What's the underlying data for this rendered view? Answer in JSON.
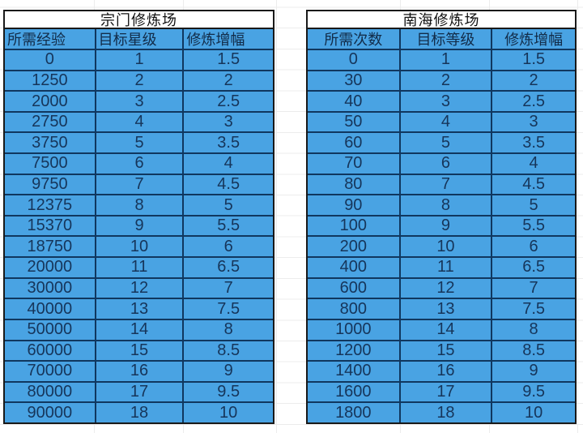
{
  "canvas": {
    "background": "#ffffff",
    "grid_line_color": "#ececec"
  },
  "colors": {
    "cell_fill": "#49A3E3",
    "cell_border": "#10375F",
    "outer_border": "#191919",
    "title_fill": "#FFFFFF",
    "title_text": "#111111",
    "header_text": "#122C49",
    "data_text": "#16355A"
  },
  "tables": [
    {
      "title": "宗门修炼场",
      "columns": [
        "所需经验",
        "目标星级",
        "修炼增幅"
      ],
      "rows": [
        [
          0,
          1,
          1.5
        ],
        [
          1250,
          2,
          2
        ],
        [
          2000,
          3,
          2.5
        ],
        [
          2750,
          4,
          3
        ],
        [
          3750,
          5,
          3.5
        ],
        [
          7500,
          6,
          4
        ],
        [
          9750,
          7,
          4.5
        ],
        [
          12375,
          8,
          5
        ],
        [
          15370,
          9,
          5.5
        ],
        [
          18750,
          10,
          6
        ],
        [
          20000,
          11,
          6.5
        ],
        [
          30000,
          12,
          7
        ],
        [
          40000,
          13,
          7.5
        ],
        [
          50000,
          14,
          8
        ],
        [
          60000,
          15,
          8.5
        ],
        [
          70000,
          16,
          9
        ],
        [
          80000,
          17,
          9.5
        ],
        [
          90000,
          18,
          10
        ]
      ]
    },
    {
      "title": "南海修炼场",
      "columns": [
        "所需次数",
        "目标等级",
        "修炼增幅"
      ],
      "rows": [
        [
          0,
          1,
          1.5
        ],
        [
          30,
          2,
          2
        ],
        [
          40,
          3,
          2.5
        ],
        [
          50,
          4,
          3
        ],
        [
          60,
          5,
          3.5
        ],
        [
          70,
          6,
          4
        ],
        [
          80,
          7,
          4.5
        ],
        [
          90,
          8,
          5
        ],
        [
          100,
          9,
          5.5
        ],
        [
          200,
          10,
          6
        ],
        [
          400,
          11,
          6.5
        ],
        [
          600,
          12,
          7
        ],
        [
          800,
          13,
          7.5
        ],
        [
          1000,
          14,
          8
        ],
        [
          1200,
          15,
          8.5
        ],
        [
          1400,
          16,
          9
        ],
        [
          1600,
          17,
          9.5
        ],
        [
          1800,
          18,
          10
        ]
      ]
    }
  ]
}
